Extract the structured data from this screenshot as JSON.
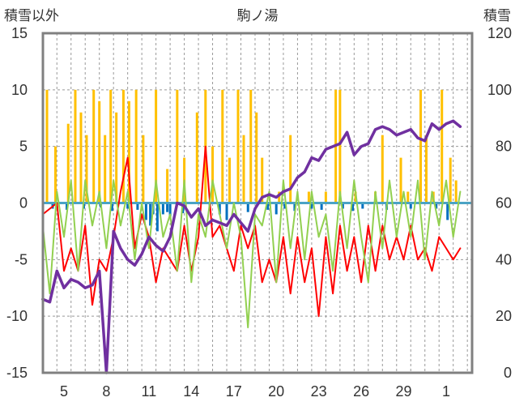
{
  "chart_data": {
    "type": "line",
    "title": "駒ノ湯",
    "y_left_label": "積雪以外",
    "y_right_label": "積雪",
    "y_left_ticks": [
      "15",
      "10",
      "5",
      "0",
      "-5",
      "-10",
      "-15"
    ],
    "y_right_ticks": [
      "120",
      "100",
      "80",
      "60",
      "40",
      "20",
      "0"
    ],
    "ylim_left": [
      -15,
      15
    ],
    "ylim_right": [
      0,
      120
    ],
    "x_tick_labels": [
      "5",
      "8",
      "11",
      "14",
      "17",
      "20",
      "23",
      "26",
      "29",
      "1"
    ],
    "grid": "vertical dashed daily lines, horizontal dashed lines at every 5 units",
    "legend": "none",
    "colors": {
      "temp_max": "#ff0000",
      "temp_min": "#92d050",
      "snow_depth": "#7030a0",
      "precip": "#ffc000",
      "bar_negative": "#0070c0",
      "zero_line": "#4aa3c4",
      "frame": "#808080"
    },
    "series": [
      {
        "axis": "left",
        "color": "#ff0000",
        "x": [
          3.5,
          4.5,
          5,
          5.5,
          6,
          6.5,
          7,
          7.5,
          8,
          8.5,
          9,
          9.5,
          10,
          10.5,
          11,
          11.5,
          12,
          12.5,
          13,
          13.5,
          14,
          14.5,
          15,
          15.5,
          16,
          16.5,
          17,
          17.5,
          18,
          18.5,
          19,
          19.5,
          20,
          20.5,
          21,
          21.5,
          22,
          22.5,
          23,
          23.5,
          24,
          24.5,
          25,
          25.5,
          26,
          26.5,
          27,
          27.5,
          28,
          28.5,
          29,
          29.5,
          30,
          30.5,
          31,
          31.5,
          32,
          32.5,
          33
        ],
        "values": [
          -1,
          0,
          -6,
          -4,
          -6,
          -2,
          -9,
          -5,
          -6,
          -3,
          1,
          4,
          -4,
          -1,
          -3,
          -7,
          -4,
          -5,
          -6,
          -2,
          -6,
          -3,
          5,
          -3,
          -2,
          -4,
          -6,
          -2,
          -4,
          -2,
          -7,
          -5,
          -7,
          -3,
          -8,
          -3,
          -7,
          -4,
          -10,
          -3,
          -8,
          -2,
          -6,
          -3,
          -7,
          -2,
          -6,
          -2,
          -5,
          -3,
          -5,
          -2,
          -5,
          -4,
          -6,
          -3,
          -4,
          -5,
          -4
        ]
      },
      {
        "axis": "left",
        "color": "#92d050",
        "x": [
          3.5,
          4,
          4.5,
          5,
          5.5,
          6,
          6.5,
          7,
          7.5,
          8,
          8.5,
          9,
          9.5,
          10,
          10.5,
          11,
          11.5,
          12,
          12.5,
          13,
          13.5,
          14,
          14.5,
          15,
          15.5,
          16,
          16.5,
          17,
          17.5,
          18,
          18.5,
          19,
          19.5,
          20,
          20.5,
          21,
          21.5,
          22,
          22.5,
          23,
          23.5,
          24,
          24.5,
          25,
          25.5,
          26,
          26.5,
          27,
          27.5,
          28,
          28.5,
          29,
          29.5,
          30,
          30.5,
          31,
          31.5,
          32,
          32.5,
          33
        ],
        "values": [
          -2,
          -8,
          1,
          -3,
          2,
          -6,
          2,
          -2,
          1,
          -4,
          2,
          -2,
          1,
          -5,
          0,
          -4,
          2,
          -3,
          -1,
          -6,
          2,
          -7,
          -1,
          -3,
          2,
          -1,
          -4,
          0,
          -3,
          -11,
          -1,
          -2,
          1,
          -7,
          2,
          -4,
          1,
          -5,
          1,
          -3,
          -1,
          -6,
          1,
          -4,
          2,
          -3,
          -7,
          1,
          -4,
          2,
          -3,
          1,
          -3,
          2,
          -5,
          1,
          -2,
          2,
          -3,
          1
        ]
      },
      {
        "axis": "right",
        "color": "#7030a0",
        "x": [
          3.5,
          4,
          4.5,
          5,
          5.5,
          6,
          6.5,
          7,
          7.5,
          8,
          8.5,
          9,
          9.5,
          10,
          10.5,
          11,
          11.5,
          12,
          12.5,
          13,
          13.5,
          14,
          14.5,
          15,
          15.5,
          16,
          16.5,
          17,
          17.5,
          18,
          18.5,
          19,
          19.5,
          20,
          20.5,
          21,
          21.5,
          22,
          22.5,
          23,
          23.5,
          24,
          24.5,
          25,
          25.5,
          26,
          26.5,
          27,
          27.5,
          28,
          28.5,
          29,
          29.5,
          30,
          30.5,
          31,
          31.5,
          32,
          32.5,
          33
        ],
        "values": [
          26,
          25,
          36,
          30,
          33,
          32,
          30,
          31,
          36,
          0,
          50,
          44,
          40,
          38,
          42,
          48,
          45,
          43,
          48,
          60,
          59,
          55,
          58,
          52,
          54,
          53,
          52,
          56,
          53,
          50,
          58,
          62,
          63,
          62,
          64,
          65,
          69,
          71,
          76,
          75,
          79,
          80,
          81,
          85,
          77,
          80,
          81,
          86,
          87,
          86,
          84,
          85,
          86,
          83,
          82,
          88,
          86,
          88,
          89,
          87
        ]
      },
      {
        "axis": "left",
        "type": "bar",
        "color": "#ffc000",
        "x": [
          3.8,
          4.4,
          5.3,
          5.8,
          6.2,
          6.6,
          7.1,
          7.5,
          7.9,
          8.3,
          8.7,
          9.2,
          9.6,
          10.1,
          10.6,
          11.5,
          12.3,
          13,
          13.5,
          14.4,
          15,
          15.5,
          16.2,
          16.7,
          17.3,
          17.7,
          18.2,
          18.6,
          19,
          20.2,
          21,
          22.3,
          23.5,
          24.2,
          24.5,
          25.6,
          27,
          27.5,
          28.8,
          29.3,
          30.2,
          30.6,
          31.1,
          31.7,
          32.3,
          32.7
        ],
        "values": [
          10,
          5,
          7,
          10,
          8,
          6,
          10,
          9,
          6,
          10,
          8,
          10,
          9,
          10,
          6,
          10,
          3,
          10,
          4,
          8,
          10,
          5,
          10,
          4,
          10,
          6,
          10,
          8,
          4,
          1,
          6,
          1,
          1,
          10,
          10,
          1,
          1,
          6,
          4,
          1,
          10,
          6,
          1,
          10,
          4,
          2
        ]
      },
      {
        "axis": "left",
        "type": "bar",
        "color": "#0070c0",
        "x": [
          4.2,
          5.2,
          6.4,
          7.6,
          8.4,
          9.5,
          10.2,
          10.8,
          11.1,
          11.3,
          11.6,
          12,
          12.3,
          12.5,
          13.4,
          15.3,
          16,
          16.5,
          18,
          19.4,
          20,
          20.6,
          21.3,
          22.5,
          23.2,
          24.7,
          25.4,
          26.1,
          27.8,
          29.5,
          31.3,
          32.1
        ],
        "values": [
          -0.5,
          -0.6,
          -0.5,
          -0.4,
          -0.7,
          -0.5,
          -0.6,
          -1.5,
          -2,
          -1,
          -2.5,
          -1,
          -0.8,
          -1.2,
          -0.9,
          -0.7,
          -1,
          -1.5,
          -0.8,
          -0.6,
          -1,
          -0.5,
          -0.7,
          -0.5,
          -0.6,
          -0.5,
          -0.7,
          -0.5,
          -0.6,
          -0.5,
          -0.5,
          -1.5
        ]
      }
    ]
  }
}
